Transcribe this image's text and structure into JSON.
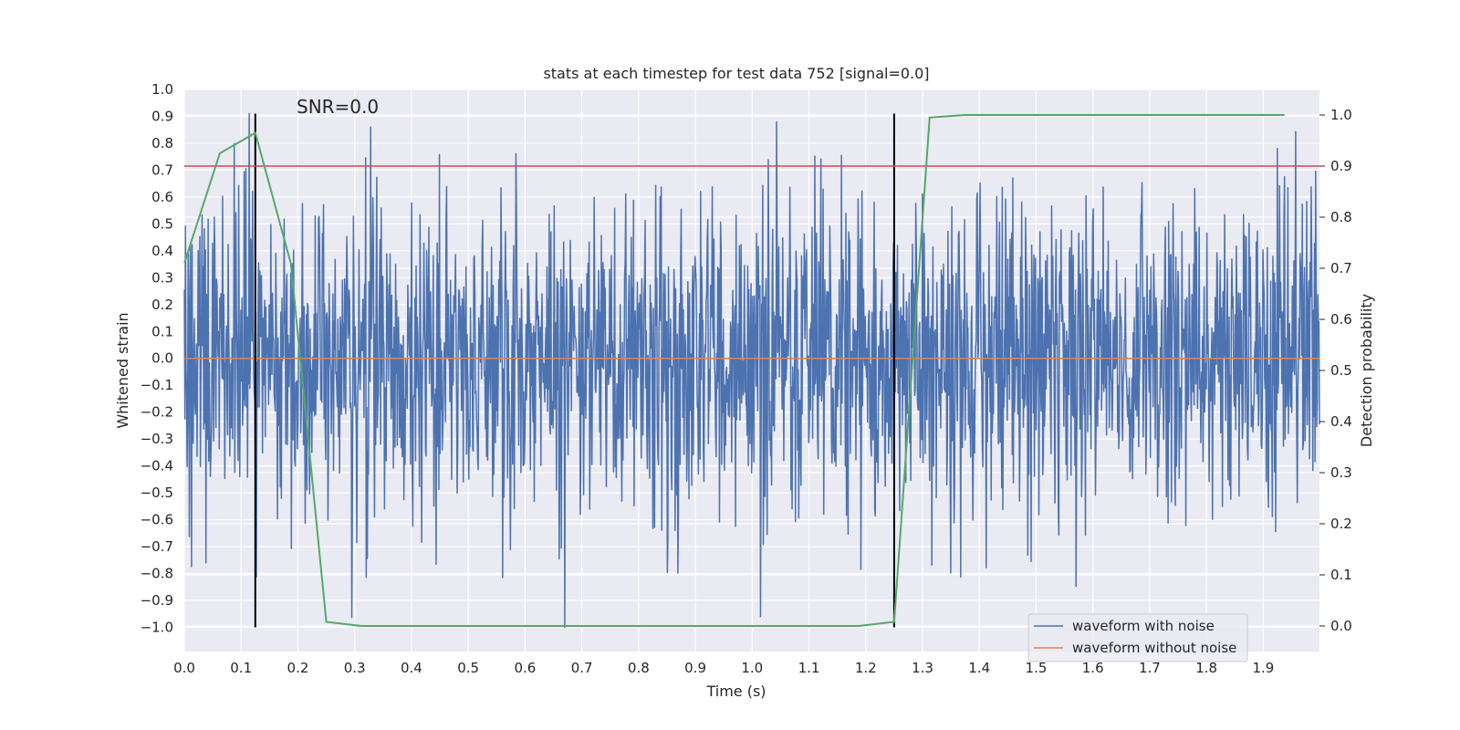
{
  "chart_data": {
    "type": "line",
    "title": "stats at each timestep for test data 752 [signal=0.0]",
    "xlabel": "Time (s)",
    "ylabel": "Whitened strain",
    "y2label": "Detection probability",
    "xlim": [
      0.0,
      1.999
    ],
    "ylim": [
      -1.09,
      1.0
    ],
    "y2lim": [
      -0.05,
      1.05
    ],
    "xticks": [
      "0.0",
      "0.1",
      "0.2",
      "0.3",
      "0.4",
      "0.5",
      "0.6",
      "0.7",
      "0.8",
      "0.9",
      "1.0",
      "1.1",
      "1.2",
      "1.3",
      "1.4",
      "1.5",
      "1.6",
      "1.7",
      "1.8",
      "1.9"
    ],
    "yticks": [
      "1.0",
      "0.9",
      "0.8",
      "0.7",
      "0.6",
      "0.5",
      "0.4",
      "0.3",
      "0.2",
      "0.1",
      "0.0",
      "−0.1",
      "−0.2",
      "−0.3",
      "−0.4",
      "−0.5",
      "−0.6",
      "−0.7",
      "−0.8",
      "−0.9",
      "−1.0"
    ],
    "y2ticks": [
      "1.0",
      "0.9",
      "0.8",
      "0.7",
      "0.6",
      "0.5",
      "0.4",
      "0.3",
      "0.2",
      "0.1",
      "0.0"
    ],
    "annotation": "SNR=0.0",
    "grid": true,
    "legend_position": "bottom-right",
    "noise_series": {
      "name": "waveform with noise",
      "color": "#4c72b0",
      "n_samples": 2048,
      "amplitude_range": [
        -1.0,
        0.91
      ],
      "typical_std": 0.3
    },
    "clean_series": {
      "name": "waveform without noise",
      "color": "#dd8452",
      "value": 0.0
    },
    "probability_series": {
      "color": "#55a868",
      "axis": "right",
      "x": [
        0.0,
        0.0625,
        0.125,
        0.1875,
        0.25,
        0.3125,
        0.375,
        0.4375,
        0.5,
        0.5625,
        0.625,
        0.6875,
        0.75,
        0.8125,
        0.875,
        0.9375,
        1.0,
        1.0625,
        1.125,
        1.1875,
        1.25,
        1.3125,
        1.375,
        1.4375,
        1.5,
        1.5625,
        1.625,
        1.6875,
        1.75,
        1.8125,
        1.875,
        1.9375
      ],
      "y": [
        0.71,
        0.925,
        0.965,
        0.71,
        0.008,
        0.0,
        0.0,
        0.0,
        0.0,
        0.0,
        0.0,
        0.0,
        0.0,
        0.0,
        0.0,
        0.0,
        0.0,
        0.0,
        0.0,
        0.0,
        0.008,
        0.995,
        1.0,
        1.0,
        1.0,
        1.0,
        1.0,
        1.0,
        1.0,
        1.0,
        1.0,
        1.0
      ]
    },
    "threshold_line": {
      "color": "#c44e52",
      "y2": 0.9
    },
    "vertical_markers": {
      "color": "#000000",
      "x": [
        0.125,
        1.25
      ],
      "y_range": [
        -1.0,
        0.91
      ]
    }
  }
}
